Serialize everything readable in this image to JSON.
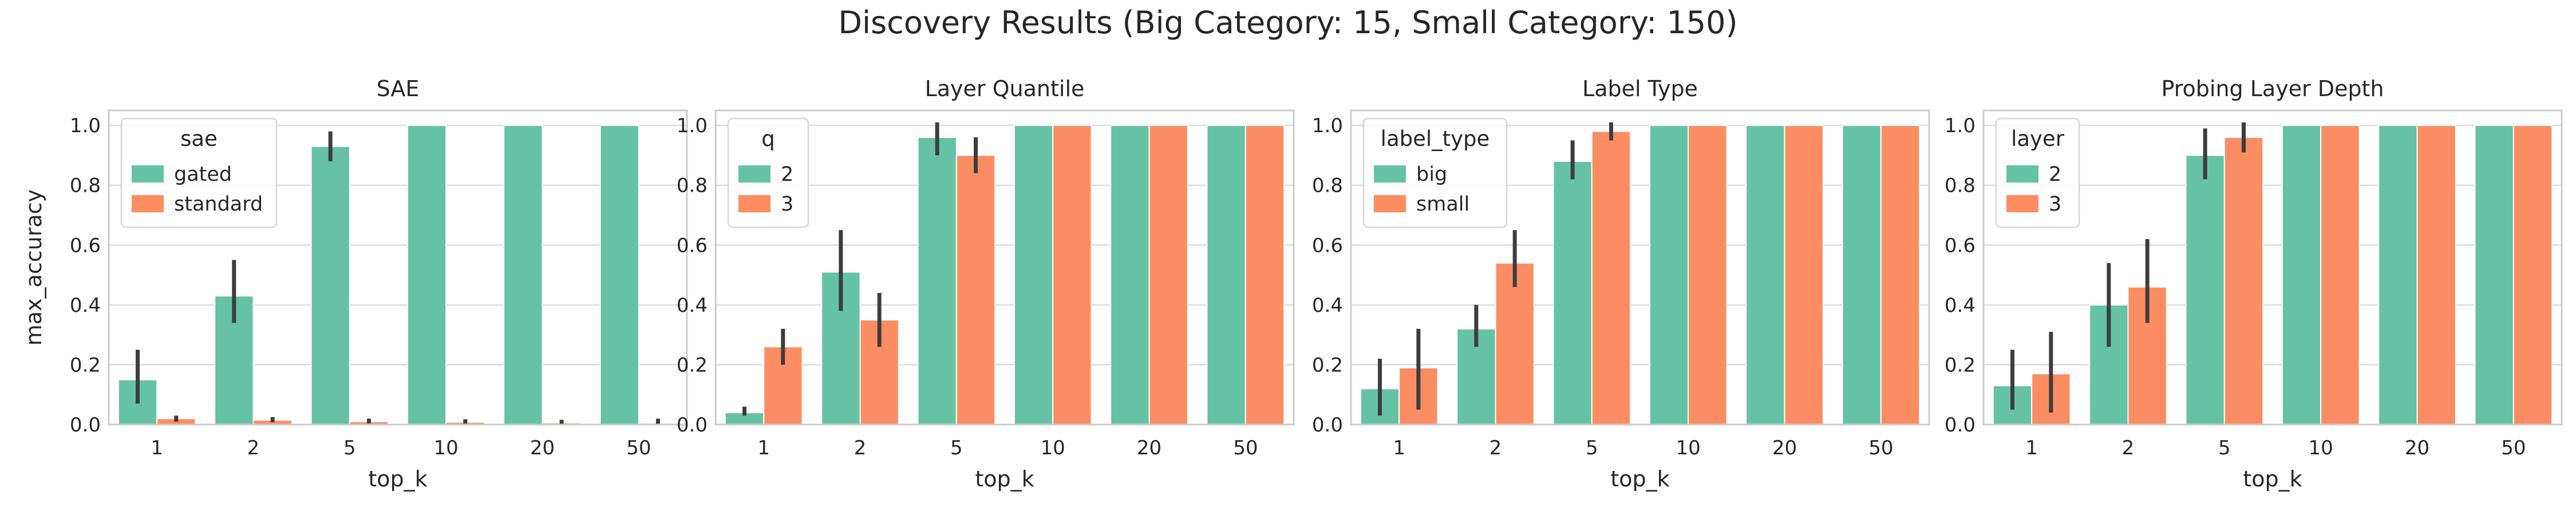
{
  "figure": {
    "title": "Discovery Results (Big Category: 15, Small Category: 150)"
  },
  "colors": {
    "series_0": "#66c2a5",
    "series_1": "#fc8d62",
    "error_bar": "#3d3d3d"
  },
  "chart_data": [
    {
      "type": "bar",
      "title": "SAE",
      "xlabel": "top_k",
      "ylabel": "max_accuracy",
      "categories": [
        "1",
        "2",
        "5",
        "10",
        "20",
        "50"
      ],
      "ylim": [
        0,
        1.05
      ],
      "yticks": [
        "0.0",
        "0.2",
        "0.4",
        "0.6",
        "0.8",
        "1.0"
      ],
      "grid": "y",
      "legend": {
        "title": "sae",
        "placement": "top-left"
      },
      "series": [
        {
          "name": "gated",
          "values": [
            0.15,
            0.43,
            0.93,
            1.0,
            1.0,
            1.0
          ],
          "err_low": [
            0.07,
            0.34,
            0.88,
            1.0,
            1.0,
            1.0
          ],
          "err_high": [
            0.25,
            0.55,
            0.98,
            1.0,
            1.0,
            1.0
          ]
        },
        {
          "name": "standard",
          "values": [
            0.02,
            0.015,
            0.01,
            0.008,
            0.006,
            0.005
          ],
          "err_low": [
            0.01,
            0.008,
            0.004,
            0.003,
            0.002,
            0.002
          ],
          "err_high": [
            0.03,
            0.025,
            0.02,
            0.018,
            0.016,
            0.02
          ]
        }
      ]
    },
    {
      "type": "bar",
      "title": "Layer Quantile",
      "xlabel": "top_k",
      "ylabel": "",
      "categories": [
        "1",
        "2",
        "5",
        "10",
        "20",
        "50"
      ],
      "ylim": [
        0,
        1.05
      ],
      "yticks": [
        "0.0",
        "0.2",
        "0.4",
        "0.6",
        "0.8",
        "1.0"
      ],
      "grid": "y",
      "legend": {
        "title": "q",
        "placement": "top-left"
      },
      "series": [
        {
          "name": "2",
          "values": [
            0.04,
            0.51,
            0.96,
            1.0,
            1.0,
            1.0
          ],
          "err_low": [
            0.03,
            0.38,
            0.9,
            1.0,
            1.0,
            1.0
          ],
          "err_high": [
            0.06,
            0.65,
            1.01,
            1.0,
            1.0,
            1.0
          ]
        },
        {
          "name": "3",
          "values": [
            0.26,
            0.35,
            0.9,
            1.0,
            1.0,
            1.0
          ],
          "err_low": [
            0.2,
            0.26,
            0.84,
            1.0,
            1.0,
            1.0
          ],
          "err_high": [
            0.32,
            0.44,
            0.96,
            1.0,
            1.0,
            1.0
          ]
        }
      ]
    },
    {
      "type": "bar",
      "title": "Label Type",
      "xlabel": "top_k",
      "ylabel": "",
      "categories": [
        "1",
        "2",
        "5",
        "10",
        "20",
        "50"
      ],
      "ylim": [
        0,
        1.05
      ],
      "yticks": [
        "0.0",
        "0.2",
        "0.4",
        "0.6",
        "0.8",
        "1.0"
      ],
      "grid": "y",
      "legend": {
        "title": "label_type",
        "placement": "top-left"
      },
      "series": [
        {
          "name": "big",
          "values": [
            0.12,
            0.32,
            0.88,
            1.0,
            1.0,
            1.0
          ],
          "err_low": [
            0.03,
            0.26,
            0.82,
            1.0,
            1.0,
            1.0
          ],
          "err_high": [
            0.22,
            0.4,
            0.95,
            1.0,
            1.0,
            1.0
          ]
        },
        {
          "name": "small",
          "values": [
            0.19,
            0.54,
            0.98,
            1.0,
            1.0,
            1.0
          ],
          "err_low": [
            0.05,
            0.46,
            0.95,
            1.0,
            1.0,
            1.0
          ],
          "err_high": [
            0.32,
            0.65,
            1.01,
            1.0,
            1.0,
            1.0
          ]
        }
      ]
    },
    {
      "type": "bar",
      "title": "Probing Layer Depth",
      "xlabel": "top_k",
      "ylabel": "",
      "categories": [
        "1",
        "2",
        "5",
        "10",
        "20",
        "50"
      ],
      "ylim": [
        0,
        1.05
      ],
      "yticks": [
        "0.0",
        "0.2",
        "0.4",
        "0.6",
        "0.8",
        "1.0"
      ],
      "grid": "y",
      "legend": {
        "title": "layer",
        "placement": "top-left"
      },
      "series": [
        {
          "name": "2",
          "values": [
            0.13,
            0.4,
            0.9,
            1.0,
            1.0,
            1.0
          ],
          "err_low": [
            0.05,
            0.26,
            0.82,
            1.0,
            1.0,
            1.0
          ],
          "err_high": [
            0.25,
            0.54,
            0.99,
            1.0,
            1.0,
            1.0
          ]
        },
        {
          "name": "3",
          "values": [
            0.17,
            0.46,
            0.96,
            1.0,
            1.0,
            1.0
          ],
          "err_low": [
            0.04,
            0.34,
            0.91,
            1.0,
            1.0,
            1.0
          ],
          "err_high": [
            0.31,
            0.62,
            1.01,
            1.0,
            1.0,
            1.0
          ]
        }
      ]
    }
  ]
}
